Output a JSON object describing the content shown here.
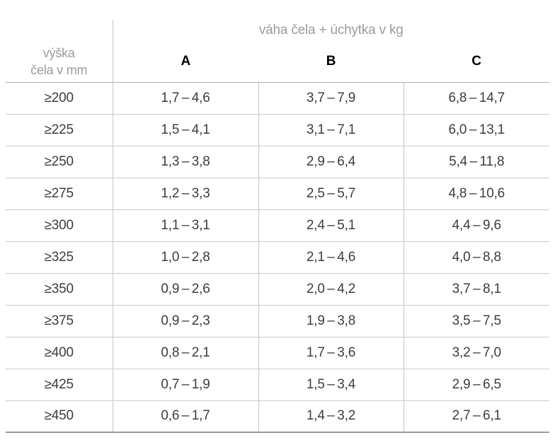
{
  "header": {
    "group_title": "váha čela + úchytka v kg",
    "row_header_line1": "výška",
    "row_header_line2": "čela v mm",
    "columns": [
      "A",
      "B",
      "C"
    ]
  },
  "colors": {
    "header_text_gray": "#9b9b9b",
    "cell_text": "#3d3d3c",
    "column_label_black": "#000000",
    "row_separator": "#c9c9c9",
    "header_separator": "#b0b0b0",
    "bottom_border": "#9b9b9b",
    "vertical_line": "#c6c6c6"
  },
  "rows": [
    {
      "h": "≥200",
      "a": "1,7 – 4,6",
      "b": "3,7 – 7,9",
      "c": "6,8 – 14,7"
    },
    {
      "h": "≥225",
      "a": "1,5 – 4,1",
      "b": "3,1 – 7,1",
      "c": "6,0 – 13,1"
    },
    {
      "h": "≥250",
      "a": "1,3 – 3,8",
      "b": "2,9 – 6,4",
      "c": "5,4 – 11,8"
    },
    {
      "h": "≥275",
      "a": "1,2 – 3,3",
      "b": "2,5 – 5,7",
      "c": "4,8 – 10,6"
    },
    {
      "h": "≥300",
      "a": "1,1 – 3,1",
      "b": "2,4 – 5,1",
      "c": "4,4 – 9,6"
    },
    {
      "h": "≥325",
      "a": "1,0 – 2,8",
      "b": "2,1 – 4,6",
      "c": "4,0 – 8,8"
    },
    {
      "h": "≥350",
      "a": "0,9 – 2,6",
      "b": "2,0 – 4,2",
      "c": "3,7 – 8,1"
    },
    {
      "h": "≥375",
      "a": "0,9 – 2,3",
      "b": "1,9 – 3,8",
      "c": "3,5 – 7,5"
    },
    {
      "h": "≥400",
      "a": "0,8 – 2,1",
      "b": "1,7 – 3,6",
      "c": "3,2 – 7,0"
    },
    {
      "h": "≥425",
      "a": "0,7 – 1,9",
      "b": "1,5 – 3,4",
      "c": "2,9 – 6,5"
    },
    {
      "h": "≥450",
      "a": "0,6 – 1,7",
      "b": "1,4 – 3,2",
      "c": "2,7 – 6,1"
    }
  ]
}
